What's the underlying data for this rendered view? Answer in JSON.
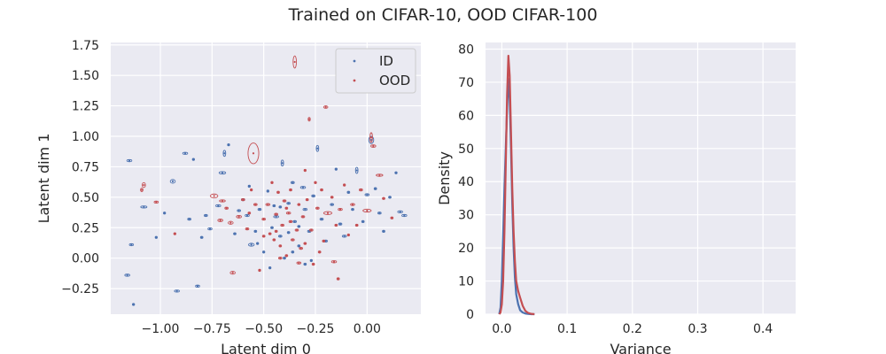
{
  "title": "Trained on CIFAR-10, OOD CIFAR-100",
  "colors": {
    "id": "#4c72b0",
    "ood": "#c44e52",
    "panel_bg": "#eaeaf2",
    "grid": "#ffffff",
    "text": "#262626"
  },
  "chart_data": [
    {
      "type": "scatter",
      "xlabel": "Latent dim 0",
      "ylabel": "Latent dim 1",
      "xlim": [
        -1.24,
        0.26
      ],
      "ylim": [
        -0.46,
        1.77
      ],
      "xticks": [
        -1.0,
        -0.75,
        -0.5,
        -0.25,
        0.0
      ],
      "xtick_labels": [
        "−1.00",
        "−0.75",
        "−0.50",
        "−0.25",
        "0.00"
      ],
      "yticks": [
        -0.25,
        0.0,
        0.25,
        0.5,
        0.75,
        1.0,
        1.25,
        1.5,
        1.75
      ],
      "ytick_labels": [
        "−0.25",
        "0.00",
        "0.25",
        "0.50",
        "0.75",
        "1.00",
        "1.25",
        "1.50",
        "1.75"
      ],
      "grid": true,
      "legend_position": "top-right",
      "note": "each point drawn with an uncertainty ellipse; values are [x, y, sx, sy]",
      "series": [
        {
          "name": "ID",
          "points": [
            [
              -1.15,
              0.8,
              0.012,
              0.004
            ],
            [
              -1.14,
              0.11,
              0.01,
              0.004
            ],
            [
              -1.16,
              -0.14,
              0.012,
              0.004
            ],
            [
              -1.13,
              -0.38,
              0.004,
              0.004
            ],
            [
              -1.08,
              0.42,
              0.015,
              0.008
            ],
            [
              -1.02,
              0.17,
              0.005,
              0.005
            ],
            [
              -0.98,
              0.37,
              0.005,
              0.005
            ],
            [
              -0.94,
              0.63,
              0.012,
              0.015
            ],
            [
              -0.92,
              -0.27,
              0.012,
              0.006
            ],
            [
              -0.88,
              0.86,
              0.012,
              0.007
            ],
            [
              -0.86,
              0.32,
              0.008,
              0.004
            ],
            [
              -0.84,
              0.81,
              0.004,
              0.004
            ],
            [
              -0.82,
              -0.23,
              0.01,
              0.005
            ],
            [
              -0.8,
              0.17,
              0.006,
              0.006
            ],
            [
              -0.78,
              0.35,
              0.008,
              0.004
            ],
            [
              -0.76,
              0.24,
              0.01,
              0.005
            ],
            [
              -0.72,
              0.43,
              0.012,
              0.005
            ],
            [
              -0.7,
              0.7,
              0.016,
              0.01
            ],
            [
              -0.69,
              0.86,
              0.006,
              0.025
            ],
            [
              -0.67,
              0.93,
              0.004,
              0.004
            ],
            [
              -0.64,
              0.2,
              0.006,
              0.004
            ],
            [
              -0.62,
              0.39,
              0.008,
              0.004
            ],
            [
              -0.6,
              0.48,
              0.008,
              0.006
            ],
            [
              -0.58,
              0.35,
              0.01,
              0.005
            ],
            [
              -0.56,
              0.11,
              0.014,
              0.012
            ],
            [
              -0.54,
              0.22,
              0.006,
              0.004
            ],
            [
              -0.52,
              0.4,
              0.008,
              0.004
            ],
            [
              -0.5,
              0.05,
              0.005,
              0.005
            ],
            [
              -0.48,
              0.55,
              0.004,
              0.004
            ],
            [
              -0.46,
              0.25,
              0.006,
              0.004
            ],
            [
              -0.44,
              0.34,
              0.012,
              0.006
            ],
            [
              -0.42,
              0.18,
              0.008,
              0.004
            ],
            [
              -0.4,
              0.0,
              0.006,
              0.004
            ],
            [
              -0.38,
              0.45,
              0.008,
              0.004
            ],
            [
              -0.36,
              0.62,
              0.008,
              0.004
            ],
            [
              -0.35,
              0.3,
              0.008,
              0.004
            ],
            [
              -0.33,
              0.1,
              0.006,
              0.004
            ],
            [
              -0.31,
              0.58,
              0.012,
              0.008
            ],
            [
              -0.3,
              0.4,
              0.01,
              0.004
            ],
            [
              -0.28,
              0.22,
              0.008,
              0.004
            ],
            [
              -0.26,
              0.51,
              0.008,
              0.006
            ],
            [
              -0.24,
              0.9,
              0.006,
              0.025
            ],
            [
              -0.22,
              0.32,
              0.008,
              0.004
            ],
            [
              -0.2,
              0.14,
              0.008,
              0.004
            ],
            [
              -0.17,
              0.44,
              0.008,
              0.004
            ],
            [
              -0.15,
              0.73,
              0.004,
              0.004
            ],
            [
              -0.13,
              0.28,
              0.008,
              0.004
            ],
            [
              -0.11,
              0.18,
              0.01,
              0.006
            ],
            [
              -0.09,
              0.54,
              0.006,
              0.006
            ],
            [
              -0.07,
              0.4,
              0.006,
              0.004
            ],
            [
              -0.05,
              0.72,
              0.006,
              0.025
            ],
            [
              -0.02,
              0.3,
              0.006,
              0.004
            ],
            [
              0.0,
              0.52,
              0.01,
              0.004
            ],
            [
              0.02,
              0.97,
              0.012,
              0.03
            ],
            [
              0.04,
              0.57,
              0.006,
              0.004
            ],
            [
              0.06,
              0.37,
              0.008,
              0.004
            ],
            [
              0.08,
              0.22,
              0.006,
              0.004
            ],
            [
              0.11,
              0.5,
              0.006,
              0.004
            ],
            [
              0.14,
              0.7,
              0.004,
              0.004
            ],
            [
              0.16,
              0.38,
              0.012,
              0.006
            ],
            [
              0.18,
              0.35,
              0.012,
              0.006
            ],
            [
              -0.42,
              0.42,
              0.006,
              0.004
            ],
            [
              -0.38,
              0.21,
              0.006,
              0.004
            ],
            [
              -0.36,
              0.05,
              0.006,
              0.004
            ],
            [
              -0.33,
              0.26,
              0.006,
              0.004
            ],
            [
              -0.3,
              -0.05,
              0.006,
              0.004
            ],
            [
              -0.47,
              -0.08,
              0.004,
              0.004
            ],
            [
              -0.57,
              0.59,
              0.004,
              0.004
            ],
            [
              -0.41,
              0.78,
              0.006,
              0.025
            ],
            [
              -0.27,
              -0.02,
              0.004,
              0.004
            ],
            [
              -0.53,
              0.12,
              0.004,
              0.004
            ],
            [
              -0.45,
              0.43,
              0.006,
              0.004
            ]
          ]
        },
        {
          "name": "OOD",
          "points": [
            [
              -1.08,
              0.6,
              0.008,
              0.02
            ],
            [
              -1.09,
              0.56,
              0.006,
              0.015
            ],
            [
              -1.02,
              0.46,
              0.01,
              0.006
            ],
            [
              -0.93,
              0.2,
              0.004,
              0.004
            ],
            [
              -0.74,
              0.51,
              0.018,
              0.016
            ],
            [
              -0.71,
              0.31,
              0.012,
              0.01
            ],
            [
              -0.7,
              0.47,
              0.014,
              0.008
            ],
            [
              -0.68,
              0.41,
              0.008,
              0.004
            ],
            [
              -0.66,
              0.29,
              0.012,
              0.012
            ],
            [
              -0.65,
              -0.12,
              0.012,
              0.012
            ],
            [
              -0.62,
              0.34,
              0.012,
              0.01
            ],
            [
              -0.6,
              0.48,
              0.008,
              0.006
            ],
            [
              -0.58,
              0.24,
              0.008,
              0.004
            ],
            [
              -0.56,
              0.56,
              0.004,
              0.008
            ],
            [
              -0.55,
              0.86,
              0.026,
              0.085
            ],
            [
              -0.54,
              0.44,
              0.008,
              0.004
            ],
            [
              -0.52,
              -0.1,
              0.004,
              0.004
            ],
            [
              -0.5,
              0.32,
              0.008,
              0.004
            ],
            [
              -0.48,
              0.44,
              0.01,
              0.006
            ],
            [
              -0.47,
              0.2,
              0.006,
              0.006
            ],
            [
              -0.46,
              0.62,
              0.004,
              0.004
            ],
            [
              -0.45,
              0.15,
              0.006,
              0.004
            ],
            [
              -0.44,
              0.36,
              0.008,
              0.004
            ],
            [
              -0.43,
              0.54,
              0.006,
              0.006
            ],
            [
              -0.42,
              0.1,
              0.006,
              0.004
            ],
            [
              -0.41,
              0.27,
              0.008,
              0.004
            ],
            [
              -0.4,
              0.47,
              0.008,
              0.008
            ],
            [
              -0.39,
              0.02,
              0.006,
              0.004
            ],
            [
              -0.38,
              0.37,
              0.01,
              0.006
            ],
            [
              -0.37,
              0.3,
              0.008,
              0.008
            ],
            [
              -0.36,
              0.15,
              0.008,
              0.004
            ],
            [
              -0.35,
              1.61,
              0.008,
              0.05
            ],
            [
              -0.34,
              0.23,
              0.008,
              0.006
            ],
            [
              -0.33,
              0.44,
              0.006,
              0.006
            ],
            [
              -0.32,
              0.08,
              0.008,
              0.004
            ],
            [
              -0.31,
              0.34,
              0.008,
              0.004
            ],
            [
              -0.3,
              0.72,
              0.004,
              0.004
            ],
            [
              -0.29,
              0.48,
              0.006,
              0.006
            ],
            [
              -0.28,
              1.14,
              0.004,
              0.015
            ],
            [
              -0.27,
              0.23,
              0.008,
              0.004
            ],
            [
              -0.25,
              0.62,
              0.004,
              0.004
            ],
            [
              -0.24,
              0.41,
              0.008,
              0.004
            ],
            [
              -0.23,
              0.05,
              0.006,
              0.004
            ],
            [
              -0.21,
              0.14,
              0.006,
              0.004
            ],
            [
              -0.2,
              1.24,
              0.01,
              0.01
            ],
            [
              -0.19,
              0.37,
              0.02,
              0.012
            ],
            [
              -0.17,
              0.5,
              0.006,
              0.006
            ],
            [
              -0.15,
              0.27,
              0.006,
              0.004
            ],
            [
              -0.13,
              0.4,
              0.01,
              0.004
            ],
            [
              -0.11,
              0.6,
              0.004,
              0.004
            ],
            [
              -0.09,
              0.19,
              0.004,
              0.004
            ],
            [
              -0.07,
              0.44,
              0.01,
              0.006
            ],
            [
              -0.05,
              0.27,
              0.006,
              0.004
            ],
            [
              -0.03,
              0.56,
              0.008,
              0.006
            ],
            [
              0.0,
              0.39,
              0.02,
              0.012
            ],
            [
              0.02,
              0.99,
              0.006,
              0.04
            ],
            [
              0.03,
              0.92,
              0.012,
              0.01
            ],
            [
              0.06,
              0.68,
              0.016,
              0.008
            ],
            [
              0.08,
              0.49,
              0.006,
              0.004
            ],
            [
              0.12,
              0.33,
              0.006,
              0.004
            ],
            [
              -0.42,
              0.0,
              0.008,
              0.004
            ],
            [
              -0.37,
              0.56,
              0.006,
              0.006
            ],
            [
              -0.33,
              -0.04,
              0.01,
              0.006
            ],
            [
              -0.26,
              -0.05,
              0.006,
              0.004
            ],
            [
              -0.16,
              -0.03,
              0.012,
              0.006
            ],
            [
              -0.14,
              -0.17,
              0.006,
              0.006
            ],
            [
              -0.3,
              0.12,
              0.006,
              0.004
            ],
            [
              -0.44,
              0.22,
              0.006,
              0.004
            ],
            [
              -0.39,
              0.41,
              0.006,
              0.004
            ],
            [
              -0.22,
              0.56,
              0.006,
              0.004
            ],
            [
              -0.5,
              0.18,
              0.006,
              0.004
            ],
            [
              -0.57,
              0.37,
              0.006,
              0.006
            ]
          ]
        }
      ]
    },
    {
      "type": "line",
      "xlabel": "Variance",
      "ylabel": "Density",
      "xlim": [
        -0.025,
        0.45
      ],
      "ylim": [
        0,
        82
      ],
      "xticks": [
        0.0,
        0.1,
        0.2,
        0.3,
        0.4
      ],
      "xtick_labels": [
        "0.0",
        "0.1",
        "0.2",
        "0.3",
        "0.4"
      ],
      "yticks": [
        0,
        10,
        20,
        30,
        40,
        50,
        60,
        70,
        80
      ],
      "ytick_labels": [
        "0",
        "10",
        "20",
        "30",
        "40",
        "50",
        "60",
        "70",
        "80"
      ],
      "grid": true,
      "series": [
        {
          "name": "ID",
          "x": [
            -0.004,
            -0.002,
            0.0,
            0.002,
            0.004,
            0.006,
            0.008,
            0.01,
            0.012,
            0.014,
            0.016,
            0.018,
            0.02,
            0.022,
            0.025,
            0.028,
            0.032,
            0.036,
            0.04,
            0.045,
            0.05
          ],
          "y": [
            0,
            2,
            10,
            24,
            38,
            50,
            62,
            71,
            65,
            50,
            33,
            20,
            11,
            6,
            3,
            1.2,
            0.5,
            0.2,
            0.1,
            0,
            0
          ]
        },
        {
          "name": "OOD",
          "x": [
            -0.004,
            -0.002,
            0.0,
            0.002,
            0.004,
            0.006,
            0.008,
            0.01,
            0.012,
            0.014,
            0.016,
            0.018,
            0.02,
            0.022,
            0.025,
            0.028,
            0.032,
            0.036,
            0.04,
            0.045,
            0.05
          ],
          "y": [
            0,
            0.5,
            3,
            10,
            25,
            45,
            66,
            78,
            72,
            55,
            38,
            25,
            16,
            10,
            7,
            5,
            2.5,
            1,
            0.4,
            0.1,
            0
          ]
        }
      ]
    }
  ]
}
